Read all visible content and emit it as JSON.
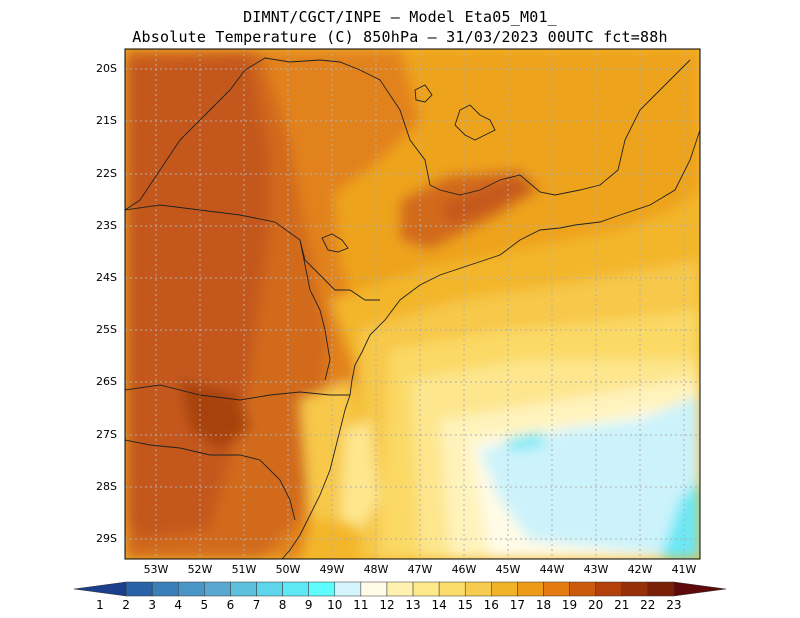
{
  "title_line1": "DIMNT/CGCT/INPE —  Model Eta05_M01_",
  "title_line2": "Absolute Temperature (C) 850hPa —  31/03/2023 00UTC fct=88h",
  "lat_labels": [
    "20S",
    "21S",
    "22S",
    "23S",
    "24S",
    "25S",
    "26S",
    "27S",
    "28S",
    "29S"
  ],
  "lon_labels": [
    "53W",
    "52W",
    "51W",
    "50W",
    "49W",
    "48W",
    "47W",
    "46W",
    "45W",
    "44W",
    "43W",
    "42W",
    "41W"
  ],
  "colorbar": {
    "labels": [
      "1",
      "2",
      "3",
      "4",
      "5",
      "6",
      "7",
      "8",
      "9",
      "10",
      "11",
      "12",
      "13",
      "14",
      "15",
      "16",
      "17",
      "18",
      "19",
      "20",
      "21",
      "22",
      "23"
    ],
    "colors": [
      "#1c3f8c",
      "#2a62a8",
      "#3a7fb8",
      "#4b95c6",
      "#5aa8d2",
      "#5dc0dd",
      "#5dd5ea",
      "#5ee8f5",
      "#5efcfc",
      "#d4f5fb",
      "#fffbe6",
      "#fff2b0",
      "#fde98a",
      "#f9dc6b",
      "#f6cb4e",
      "#f1b22a",
      "#ec9a18",
      "#e37b10",
      "#cc5a0d",
      "#b3410b",
      "#963008",
      "#7a2008",
      "#5e0a0a"
    ]
  },
  "field_colors": {
    "t20": "#c4581a",
    "t19": "#d26a1c",
    "t18": "#e2821c",
    "t17": "#eea31e",
    "t16": "#f3b62a",
    "t15": "#f7c84a",
    "t14": "#fbd965",
    "t13": "#fde68d",
    "t12": "#fff3bc",
    "t11": "#fffbe6",
    "t10": "#ccf3fb",
    "t9": "#6ce8f5",
    "t21": "#a8420e",
    "t22": "#8c3008"
  }
}
